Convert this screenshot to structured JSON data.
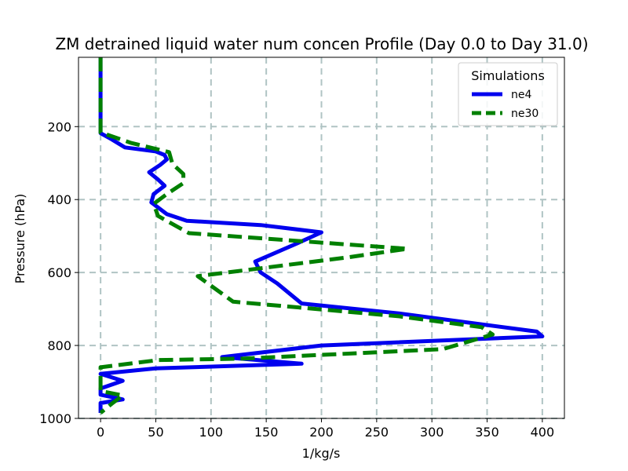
{
  "chart_data": {
    "type": "line",
    "title": "ZM detrained liquid water num concen Profile (Day 0.0 to Day 31.0)",
    "xlabel": "1/kg/s",
    "ylabel": "Pressure (hPa)",
    "xlim": [
      -20,
      420
    ],
    "ylim": [
      1000,
      10
    ],
    "y_inverted": true,
    "grid": true,
    "xticks": [
      "0",
      "50",
      "100",
      "150",
      "200",
      "250",
      "300",
      "350",
      "400"
    ],
    "yticks": [
      "200",
      "400",
      "600",
      "800",
      "1000"
    ],
    "legend": {
      "title": "Simulations",
      "position": "top-right"
    },
    "series": [
      {
        "name": "ne4",
        "color": "#0000ee",
        "dash": "solid",
        "points": [
          [
            0,
            10
          ],
          [
            0,
            100
          ],
          [
            0,
            200
          ],
          [
            0,
            218
          ],
          [
            10,
            235
          ],
          [
            22,
            257
          ],
          [
            50,
            268
          ],
          [
            58,
            278
          ],
          [
            60,
            290
          ],
          [
            54,
            305
          ],
          [
            44,
            325
          ],
          [
            52,
            345
          ],
          [
            58,
            362
          ],
          [
            48,
            385
          ],
          [
            46,
            408
          ],
          [
            60,
            440
          ],
          [
            78,
            458
          ],
          [
            145,
            470
          ],
          [
            200,
            490
          ],
          [
            178,
            520
          ],
          [
            140,
            570
          ],
          [
            145,
            600
          ],
          [
            160,
            630
          ],
          [
            182,
            685
          ],
          [
            270,
            712
          ],
          [
            395,
            762
          ],
          [
            400,
            775
          ],
          [
            200,
            800
          ],
          [
            110,
            832
          ],
          [
            182,
            850
          ],
          [
            50,
            863
          ],
          [
            0,
            878
          ],
          [
            20,
            897
          ],
          [
            0,
            918
          ],
          [
            0,
            935
          ],
          [
            20,
            948
          ],
          [
            0,
            958
          ],
          [
            0,
            985
          ]
        ]
      },
      {
        "name": "ne30",
        "color": "#008000",
        "dash": "dashed",
        "points": [
          [
            0,
            10
          ],
          [
            0,
            100
          ],
          [
            0,
            200
          ],
          [
            0,
            216
          ],
          [
            28,
            245
          ],
          [
            62,
            270
          ],
          [
            65,
            302
          ],
          [
            75,
            330
          ],
          [
            75,
            355
          ],
          [
            60,
            385
          ],
          [
            48,
            412
          ],
          [
            52,
            445
          ],
          [
            80,
            492
          ],
          [
            278,
            535
          ],
          [
            225,
            558
          ],
          [
            88,
            610
          ],
          [
            120,
            680
          ],
          [
            270,
            720
          ],
          [
            345,
            750
          ],
          [
            355,
            770
          ],
          [
            310,
            810
          ],
          [
            130,
            836
          ],
          [
            52,
            840
          ],
          [
            0,
            860
          ],
          [
            0,
            925
          ],
          [
            20,
            937
          ],
          [
            10,
            960
          ],
          [
            0,
            985
          ]
        ]
      }
    ]
  }
}
